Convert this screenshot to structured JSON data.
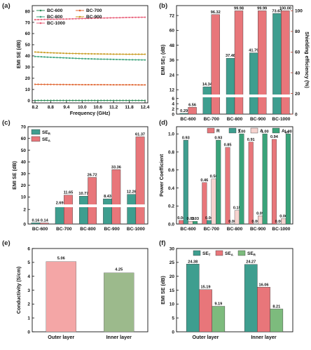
{
  "panels": {
    "a": "(a)",
    "b": "(b)",
    "c": "(c)",
    "d": "(d)",
    "e": "(e)",
    "f": "(f)"
  },
  "chart_data": [
    {
      "id": "a",
      "type": "line",
      "xlabel": "Frequency (GHz)",
      "ylabel": "EMI SE (dB)",
      "xlim": [
        8.2,
        12.4
      ],
      "ylim": [
        -2,
        85
      ],
      "xticks": [
        "8.2",
        "8.8",
        "9.4",
        "10.0",
        "10.6",
        "11.2",
        "11.8",
        "12.4"
      ],
      "yticks": [
        "0",
        "10",
        "20",
        "30",
        "40",
        "50",
        "60",
        "70",
        "80"
      ],
      "legend": "top-left, 2 columns",
      "series": [
        {
          "name": "BC-600",
          "color": "#2e8b57",
          "marker": "circle",
          "values": [
            0.2,
            0.2,
            0.2,
            0.2,
            0.2,
            0.2,
            0.2,
            0.2
          ]
        },
        {
          "name": "BC-700",
          "color": "#e0642f",
          "marker": "circle",
          "values": [
            14.6,
            14.5,
            14.4,
            14.3,
            14.3,
            14.2,
            14.2,
            14.1
          ]
        },
        {
          "name": "BC-800",
          "color": "#3aa37a",
          "marker": "circle",
          "values": [
            39.5,
            38.8,
            38.2,
            37.6,
            37.2,
            36.9,
            36.6,
            36.4
          ]
        },
        {
          "name": "BC-900",
          "color": "#c89a1e",
          "marker": "circle",
          "values": [
            43.5,
            42.8,
            42.3,
            42.0,
            41.8,
            41.6,
            41.5,
            41.5
          ]
        },
        {
          "name": "BC-1000",
          "color": "#e8607a",
          "marker": "circle",
          "values": [
            72.4,
            72.8,
            73.0,
            73.4,
            73.8,
            74.1,
            74.4,
            74.6
          ]
        }
      ]
    },
    {
      "id": "b",
      "type": "bar",
      "ylabel": "EMI SE<sub>T</sub> (dB)",
      "y2label": "Shielding efficiency (%)",
      "ylabel_text": "EMI SE",
      "ylabel_sub": "T",
      "ylabel_unit": " (dB)",
      "categories": [
        "BC-600",
        "BC-700",
        "BC-800",
        "BC-900",
        "BC-1000"
      ],
      "yticks_low": [
        "0",
        "2",
        "4",
        "6"
      ],
      "yticks_high": [
        "12",
        "24",
        "36",
        "48",
        "60",
        "72"
      ],
      "y2ticks": [
        "0",
        "20",
        "40",
        "60",
        "80",
        "100"
      ],
      "series": [
        {
          "name": "EMI SE_T",
          "color": "#3e9e8f",
          "values": [
            0.29,
            14.34,
            37.48,
            41.79,
            73.63
          ],
          "labels": [
            "0.29",
            "14.34",
            "37.48",
            "41.79",
            "73.63"
          ]
        },
        {
          "name": "Shielding efficiency",
          "color": "#e8767a",
          "values": [
            6.56,
            96.32,
            99.98,
            99.99,
            100.0
          ],
          "labels": [
            "6.56",
            "96.32",
            "99.98",
            "99.99",
            "100.00"
          ]
        }
      ]
    },
    {
      "id": "c",
      "type": "bar",
      "ylabel": "EMI SE (dB)",
      "categories": [
        "BC-600",
        "BC-700",
        "BC-800",
        "BC-900",
        "BC-1000"
      ],
      "yticks_low": [
        "0",
        "2"
      ],
      "yticks_high": [
        "10",
        "20",
        "30",
        "40",
        "50",
        "60",
        "70"
      ],
      "series": [
        {
          "name": "SE",
          "sub": "R",
          "color": "#3e9e8f",
          "values": [
            0.16,
            2.69,
            10.77,
            8.43,
            12.26
          ],
          "labels": [
            "0.16",
            "2.69",
            "10.77",
            "8.43",
            "12.26"
          ]
        },
        {
          "name": "SE",
          "sub": "A",
          "color": "#e8767a",
          "values": [
            0.14,
            11.65,
            26.72,
            33.36,
            61.37
          ],
          "labels": [
            "0.14",
            "11.65",
            "26.72",
            "33.36",
            "61.37"
          ]
        }
      ]
    },
    {
      "id": "d",
      "type": "bar",
      "ylabel": "Power Coefficient",
      "categories": [
        "BC-600",
        "BC-700",
        "BC-800",
        "BC-900",
        "BC-1000"
      ],
      "yticks": [
        "0.0",
        "0.2",
        "0.4",
        "0.6",
        "0.8",
        "1.0"
      ],
      "series": [
        {
          "name": "R",
          "color": "#e8767a",
          "values": [
            0.04,
            0.46,
            0.85,
            0.91,
            0.94
          ],
          "labels": [
            "0.04",
            "0.46",
            "0.85",
            "0.91",
            "0.94"
          ]
        },
        {
          "name": "T",
          "color": "#3e9e8f",
          "values": [
            0.93,
            0.04,
            0.0,
            0.0,
            0.0
          ],
          "labels": [
            "0.93",
            "0.04",
            "0.00",
            "0.00",
            "0.00"
          ]
        },
        {
          "name": "A",
          "color": "#f6d3cf",
          "values": [
            0.03,
            0.5,
            0.15,
            0.09,
            0.06
          ],
          "labels": [
            "0.03",
            "0.50",
            "0.15",
            "0.09",
            "0.06"
          ]
        },
        {
          "name": "A",
          "sub": "eff",
          "color": "#3aa37a",
          "values": [
            0.03,
            0.93,
            1.0,
            1.0,
            1.0
          ],
          "labels": [
            "0.03",
            "0.93",
            "1.00",
            "1.00",
            "1.00"
          ]
        }
      ]
    },
    {
      "id": "e",
      "type": "bar",
      "ylabel": "Conductivity (S/cm)",
      "categories": [
        "Outer layer",
        "Inner layer"
      ],
      "ylim": [
        0,
        6
      ],
      "yticks": [
        "0",
        "1",
        "2",
        "3",
        "4",
        "5",
        "6"
      ],
      "series": [
        {
          "name": "Conductivity",
          "colors": [
            "#f4a6a6",
            "#9cba8c"
          ],
          "values": [
            5.06,
            4.25
          ],
          "labels": [
            "5.06",
            "4.25"
          ]
        }
      ]
    },
    {
      "id": "f",
      "type": "bar",
      "ylabel": "EMI SE (dB)",
      "categories": [
        "Outer layer",
        "Inner layer"
      ],
      "ylim": [
        0,
        30
      ],
      "yticks": [
        "0",
        "5",
        "10",
        "15",
        "20",
        "25",
        "30"
      ],
      "series": [
        {
          "name": "SE",
          "sub": "T",
          "color": "#3e9e8f",
          "values": [
            24.38,
            24.27
          ],
          "labels": [
            "24.38",
            "24.27"
          ]
        },
        {
          "name": "SE",
          "sub": "A",
          "color": "#e8767a",
          "values": [
            15.19,
            16.06
          ],
          "labels": [
            "15.19",
            "16.06"
          ]
        },
        {
          "name": "SE",
          "sub": "R",
          "color": "#7dbb7d",
          "values": [
            9.19,
            8.21
          ],
          "labels": [
            "9.19",
            "8.21"
          ]
        }
      ]
    }
  ]
}
